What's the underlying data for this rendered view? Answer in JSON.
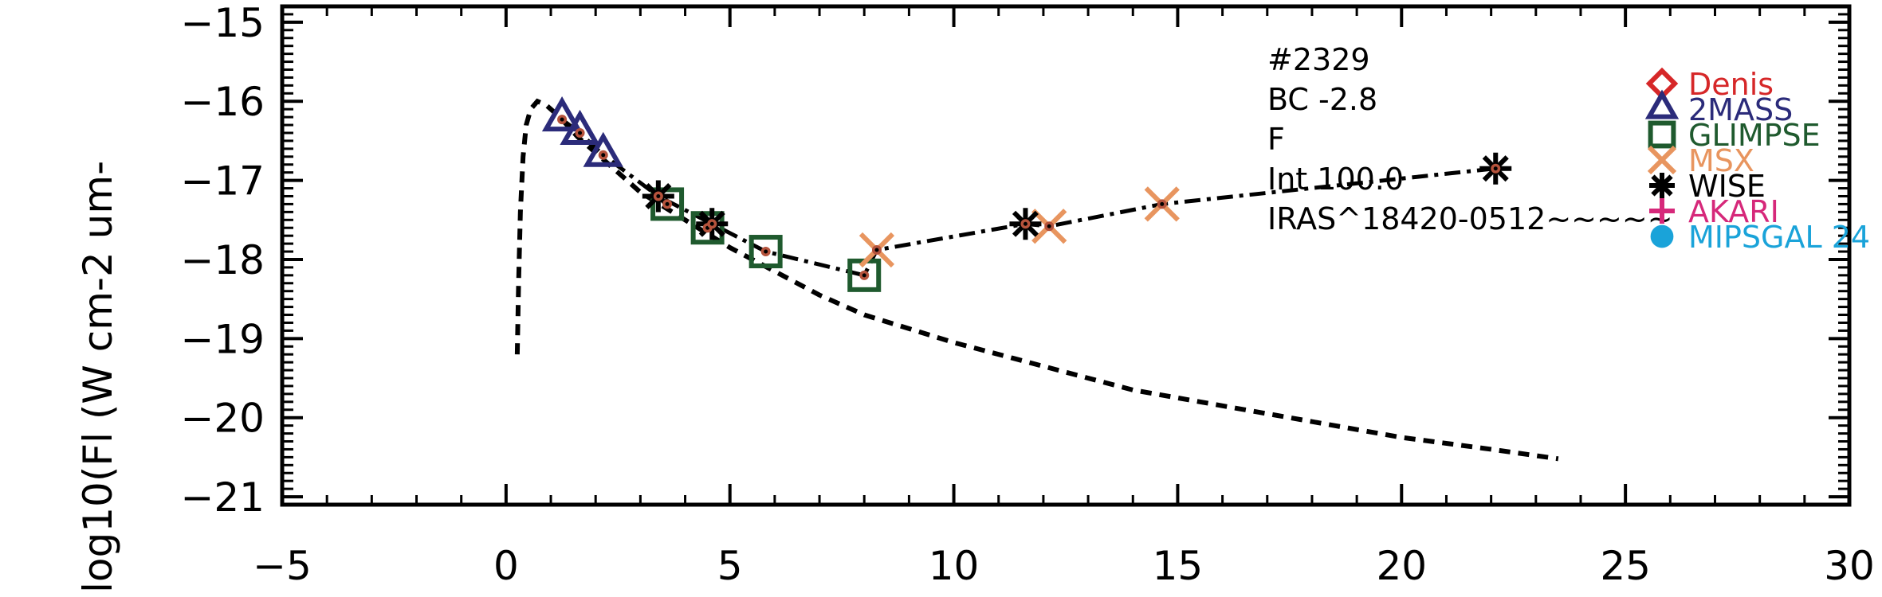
{
  "chart_data": {
    "type": "scatter",
    "xlabel": "",
    "ylabel": "log10(Fl (W cm-2 um-",
    "xlim": [
      -5,
      30
    ],
    "ylim": [
      -21.1,
      -14.8
    ],
    "x_ticks": [
      -5,
      0,
      5,
      10,
      15,
      20,
      25,
      30
    ],
    "x_tick_labels": [
      "−5",
      "0",
      "5",
      "10",
      "15",
      "20",
      "25",
      "30"
    ],
    "y_ticks": [
      -21,
      -20,
      -19,
      -18,
      -17,
      -16,
      -15
    ],
    "y_tick_labels": [
      "−21",
      "−20",
      "−19",
      "−18",
      "−17",
      "−16",
      "−15"
    ],
    "annotations": [
      "#2329",
      "BC -2.8",
      "F",
      "Int 100.0",
      "IRAS^18420-0512~~~~~"
    ],
    "series": [
      {
        "name": "Denis",
        "marker": "diamond",
        "color": "#d62728",
        "x": [],
        "y": []
      },
      {
        "name": "2MASS",
        "marker": "triangle",
        "color": "#2b2b7a",
        "x": [
          1.25,
          1.65,
          2.17
        ],
        "y": [
          -16.23,
          -16.4,
          -16.68
        ]
      },
      {
        "name": "GLIMPSE",
        "marker": "square",
        "color": "#1f5a2e",
        "x": [
          3.6,
          4.5,
          5.8,
          8.0
        ],
        "y": [
          -17.3,
          -17.6,
          -17.9,
          -18.2
        ]
      },
      {
        "name": "MSX",
        "marker": "x",
        "color": "#e8955f",
        "x": [
          8.28,
          12.13,
          14.65
        ],
        "y": [
          -17.88,
          -17.58,
          -17.3
        ]
      },
      {
        "name": "WISE",
        "marker": "asterisk",
        "color": "#000000",
        "x": [
          3.4,
          4.6,
          11.6,
          22.1
        ],
        "y": [
          -17.2,
          -17.55,
          -17.55,
          -16.85
        ]
      },
      {
        "name": "AKARI",
        "marker": "plus",
        "color": "#d6287a",
        "x": [],
        "y": []
      },
      {
        "name": "MIPSGAL 24",
        "marker": "circle",
        "color": "#1aa3d9",
        "x": [],
        "y": []
      }
    ],
    "observed_points": {
      "x": [
        1.25,
        1.65,
        2.17,
        3.4,
        3.6,
        4.5,
        4.6,
        5.8,
        8.0,
        8.28,
        11.6,
        12.13,
        14.65,
        22.1
      ],
      "y": [
        -16.23,
        -16.4,
        -16.68,
        -17.2,
        -17.3,
        -17.6,
        -17.55,
        -17.9,
        -18.2,
        -17.88,
        -17.55,
        -17.58,
        -17.3,
        -16.85
      ]
    },
    "sed_line": {
      "style": "dash-dot",
      "x": [
        1.25,
        1.65,
        2.17,
        3.4,
        4.6,
        5.8,
        8.0,
        8.28,
        11.6,
        12.13,
        14.65,
        22.1
      ],
      "y": [
        -16.23,
        -16.4,
        -16.68,
        -17.2,
        -17.55,
        -17.9,
        -18.2,
        -17.88,
        -17.55,
        -17.58,
        -17.3,
        -16.85
      ]
    },
    "model_curve": {
      "style": "dashed",
      "x": [
        0.25,
        0.28,
        0.32,
        0.38,
        0.45,
        0.55,
        0.7,
        0.9,
        1.2,
        1.6,
        2.2,
        3.0,
        4.0,
        5.0,
        6.0,
        7.0,
        8.0,
        10.0,
        12.0,
        14.0,
        16.0,
        18.0,
        20.0,
        22.0,
        23.5
      ],
      "y": [
        -19.2,
        -18.3,
        -17.4,
        -16.7,
        -16.3,
        -16.1,
        -16.0,
        -16.05,
        -16.2,
        -16.45,
        -16.75,
        -17.15,
        -17.5,
        -17.85,
        -18.15,
        -18.45,
        -18.7,
        -19.05,
        -19.35,
        -19.65,
        -19.85,
        -20.05,
        -20.25,
        -20.4,
        -20.52
      ]
    }
  }
}
